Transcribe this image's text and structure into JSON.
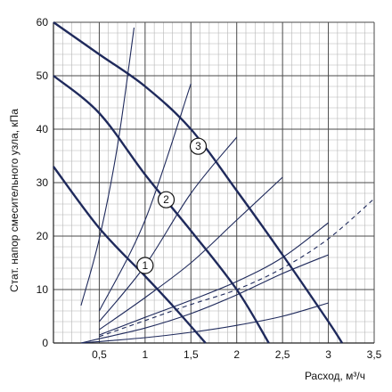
{
  "chart_data": {
    "type": "line",
    "xlabel": "Расход, м³/ч",
    "ylabel": "Стат. напор смесительного узла, кПа",
    "xlim": [
      0,
      3.5
    ],
    "ylim": [
      0,
      60
    ],
    "x_ticks": [
      "0,5",
      "1",
      "1,5",
      "2",
      "2,5",
      "3",
      "3,5"
    ],
    "y_ticks": [
      "0",
      "10",
      "20",
      "30",
      "40",
      "50",
      "60"
    ],
    "grid": true,
    "colors": {
      "pump_curve": "#1f2a5c",
      "system_curve": "#1f2a5c",
      "grid_major": "#4a4a4a",
      "grid_minor": "#b5b5b5"
    },
    "pump_curves": [
      {
        "label": "1",
        "label_at": [
          1,
          14.5
        ],
        "points": [
          [
            0,
            33
          ],
          [
            0.5,
            21.5
          ],
          [
            1,
            12.5
          ],
          [
            1.3,
            7
          ],
          [
            1.66,
            0
          ]
        ]
      },
      {
        "label": "2",
        "label_at": [
          1.23,
          26.8
        ],
        "points": [
          [
            0,
            50
          ],
          [
            0.5,
            43
          ],
          [
            1,
            31.5
          ],
          [
            1.5,
            21
          ],
          [
            2,
            10
          ],
          [
            2.35,
            0
          ]
        ]
      },
      {
        "label": "3",
        "label_at": [
          1.58,
          36.8
        ],
        "points": [
          [
            0,
            60
          ],
          [
            0.5,
            54
          ],
          [
            1,
            48
          ],
          [
            1.5,
            40
          ],
          [
            2,
            28.5
          ],
          [
            2.5,
            16.5
          ],
          [
            3,
            4
          ],
          [
            3.15,
            0
          ]
        ]
      }
    ],
    "system_curves": [
      {
        "dashed": false,
        "points": [
          [
            0.3,
            7
          ],
          [
            0.5,
            19.5
          ],
          [
            0.7,
            37
          ],
          [
            0.88,
            59
          ]
        ]
      },
      {
        "dashed": false,
        "points": [
          [
            0.5,
            6
          ],
          [
            1,
            23
          ],
          [
            1.5,
            48.5
          ]
        ]
      },
      {
        "dashed": false,
        "points": [
          [
            0.5,
            4
          ],
          [
            1,
            14.5
          ],
          [
            1.5,
            28
          ],
          [
            2,
            38.5
          ]
        ]
      },
      {
        "dashed": false,
        "points": [
          [
            0.5,
            2.5
          ],
          [
            1,
            8.5
          ],
          [
            1.5,
            15
          ],
          [
            2,
            23
          ],
          [
            2.5,
            31
          ]
        ]
      },
      {
        "dashed": false,
        "points": [
          [
            0.5,
            1.5
          ],
          [
            1,
            4.8
          ],
          [
            1.5,
            8
          ],
          [
            2,
            11.5
          ],
          [
            2.5,
            16
          ],
          [
            3,
            22.5
          ]
        ]
      },
      {
        "dashed": false,
        "points": [
          [
            0.3,
            0
          ],
          [
            0.5,
            0.8
          ],
          [
            1,
            2.8
          ],
          [
            1.5,
            5.5
          ],
          [
            2,
            9
          ],
          [
            2.5,
            13
          ],
          [
            3,
            16.5
          ]
        ]
      },
      {
        "dashed": true,
        "points": [
          [
            0.5,
            1.2
          ],
          [
            1,
            4.2
          ],
          [
            1.5,
            7.2
          ],
          [
            2,
            10
          ],
          [
            2.5,
            14
          ],
          [
            3,
            19.5
          ],
          [
            3.5,
            27
          ]
        ]
      },
      {
        "dashed": false,
        "points": [
          [
            0.3,
            0
          ],
          [
            1,
            1
          ],
          [
            1.5,
            2
          ],
          [
            2,
            3.3
          ],
          [
            2.5,
            5
          ],
          [
            3,
            7.5
          ]
        ]
      }
    ]
  }
}
